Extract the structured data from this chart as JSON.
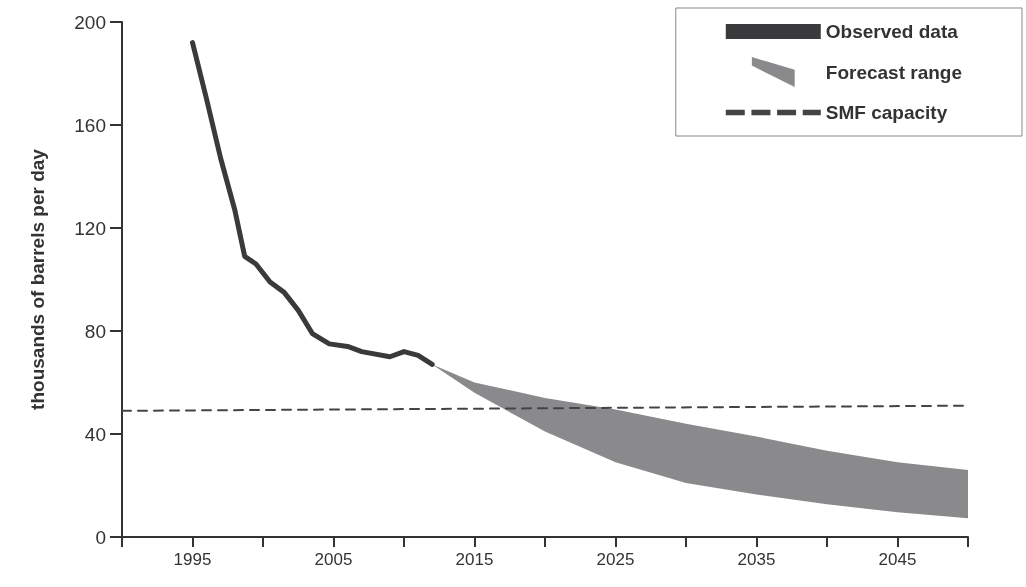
{
  "chart_data": {
    "type": "line",
    "ylabel": "thousands of barrels per day",
    "xlim": [
      1990,
      2050
    ],
    "xticks": [
      {
        "value": 1990,
        "label": null
      },
      1995,
      {
        "value": 2000,
        "label": null
      },
      2005,
      {
        "value": 2010,
        "label": null
      },
      2015,
      {
        "value": 2020,
        "label": null
      },
      2025,
      {
        "value": 2030,
        "label": null
      },
      2035,
      {
        "value": 2040,
        "label": null
      },
      2045,
      {
        "value": 2050,
        "label": null
      }
    ],
    "ylim": [
      0,
      200
    ],
    "yticks": [
      0,
      40,
      80,
      120,
      160,
      200
    ],
    "grid": false,
    "legend": "top right",
    "marker": "none",
    "series": [
      {
        "name": "Observed data",
        "color": "#3a3a3c",
        "line_style": "solid",
        "x": [
          1995,
          1996,
          1997,
          1998,
          1998.7,
          1999.5,
          2000.5,
          2001.5,
          2002.5,
          2003.5,
          2004.7,
          2006,
          2007,
          2009,
          2010,
          2011,
          2012
        ],
        "values": [
          192,
          170,
          147,
          127,
          109,
          106,
          99,
          95,
          88,
          79,
          75,
          74,
          72,
          70,
          72,
          70.5,
          67
        ]
      },
      {
        "name": "Forecast range",
        "type": "area",
        "color": "#8a8a8c",
        "x": [
          2012,
          2015,
          2020,
          2025,
          2030,
          2035,
          2040,
          2045,
          2050
        ],
        "values": [
          null,
          null,
          null,
          null,
          null,
          null,
          null,
          null,
          null
        ],
        "upper": [
          67,
          60,
          54,
          49.5,
          44,
          39,
          33.5,
          29,
          26
        ],
        "lower": [
          67,
          56,
          41,
          29,
          21,
          16.5,
          12.7,
          9.6,
          7.3
        ]
      },
      {
        "name": "SMF capacity",
        "color": "#444446",
        "line_style": "dashed",
        "x": [
          1990,
          2050
        ],
        "values": [
          49,
          51
        ]
      }
    ]
  }
}
